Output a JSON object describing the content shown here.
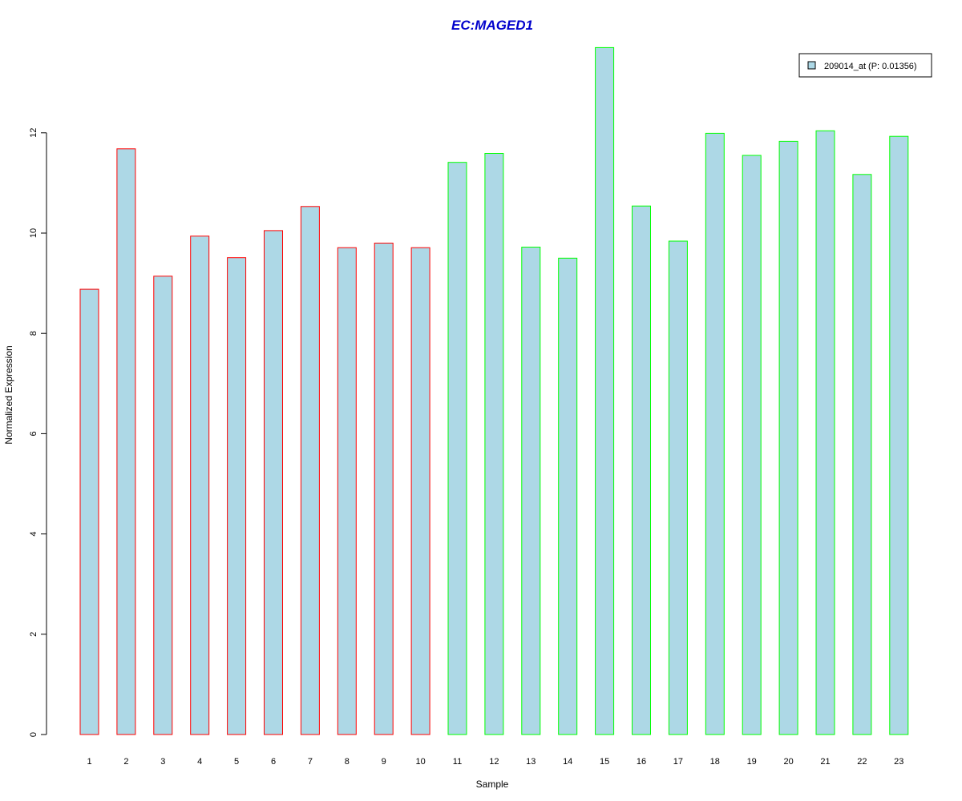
{
  "chart_data": {
    "type": "bar",
    "title": "EC:MAGED1",
    "xlabel": "Sample",
    "ylabel": "Normalized Expression",
    "categories": [
      "1",
      "2",
      "3",
      "4",
      "5",
      "6",
      "7",
      "8",
      "9",
      "10",
      "11",
      "12",
      "13",
      "14",
      "15",
      "16",
      "17",
      "18",
      "19",
      "20",
      "21",
      "22",
      "23"
    ],
    "series": [
      {
        "name": "209014_at (P: 0.01356)",
        "values": [
          8.88,
          11.68,
          9.14,
          9.94,
          9.51,
          10.05,
          10.53,
          9.71,
          9.8,
          9.71,
          11.41,
          11.59,
          9.72,
          9.5,
          13.7,
          10.54,
          9.84,
          11.99,
          11.55,
          11.83,
          12.04,
          11.17,
          11.93
        ]
      }
    ],
    "yticks": [
      0,
      2,
      4,
      6,
      8,
      10,
      12
    ],
    "ylim": [
      0,
      13.7
    ],
    "legend_position": "top-right",
    "grid": false
  },
  "colors": {
    "title": "#0000cc",
    "bar_fill": "#add8e6",
    "group1_border": "#ff0000",
    "group2_border": "#00ff00",
    "axis": "#000000"
  },
  "bar_border_groups": [
    "group1",
    "group1",
    "group1",
    "group1",
    "group1",
    "group1",
    "group1",
    "group1",
    "group1",
    "group1",
    "group2",
    "group2",
    "group2",
    "group2",
    "group2",
    "group2",
    "group2",
    "group2",
    "group2",
    "group2",
    "group2",
    "group2",
    "group2"
  ]
}
